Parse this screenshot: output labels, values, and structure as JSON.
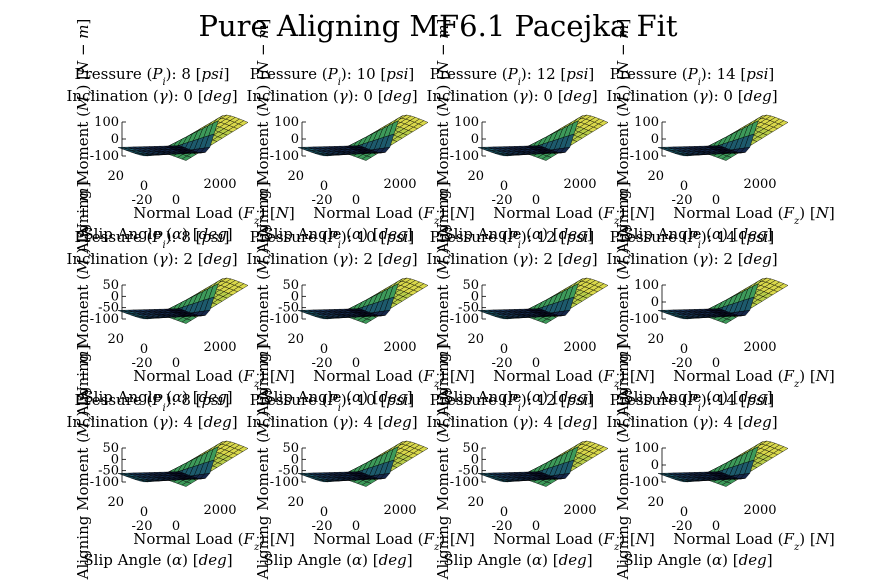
{
  "figure": {
    "title": "Pure Aligning MF6.1 Pacejka Fit"
  },
  "chart_data": {
    "type": "surface",
    "title": "Pure Aligning MF6.1 Pacejka Fit",
    "xlabel": "Normal Load (F_z) [N]",
    "ylabel": "Slip Angle (α) [deg]",
    "zlabel": "Aligning Moment (M_z) [N - m]",
    "x_ticks": [
      "0",
      "2000"
    ],
    "y_ticks": [
      "20",
      "0",
      "-20"
    ],
    "grid": false,
    "legend": "none",
    "rows": [
      {
        "inclination": 0,
        "z_ticks": [
          "100",
          "0",
          "-100"
        ],
        "zlim": [
          -100,
          100
        ]
      },
      {
        "inclination": 2,
        "z_ticks": [
          "50",
          "0",
          "-50",
          "-100"
        ],
        "zlim": [
          -100,
          50
        ]
      },
      {
        "inclination": 4,
        "z_ticks": [
          "50",
          "0",
          "-50",
          "-100"
        ],
        "zlim": [
          -100,
          50
        ]
      }
    ],
    "pressures": [
      8,
      10,
      12,
      14
    ],
    "exceptions": [
      {
        "row": 1,
        "col": 3,
        "z_ticks": [
          "100",
          "0",
          "-100"
        ],
        "zlim": [
          -100,
          100
        ]
      },
      {
        "row": 2,
        "col": 3,
        "z_ticks": [
          "100",
          "0",
          "-100"
        ],
        "zlim": [
          -100,
          100
        ]
      }
    ]
  }
}
